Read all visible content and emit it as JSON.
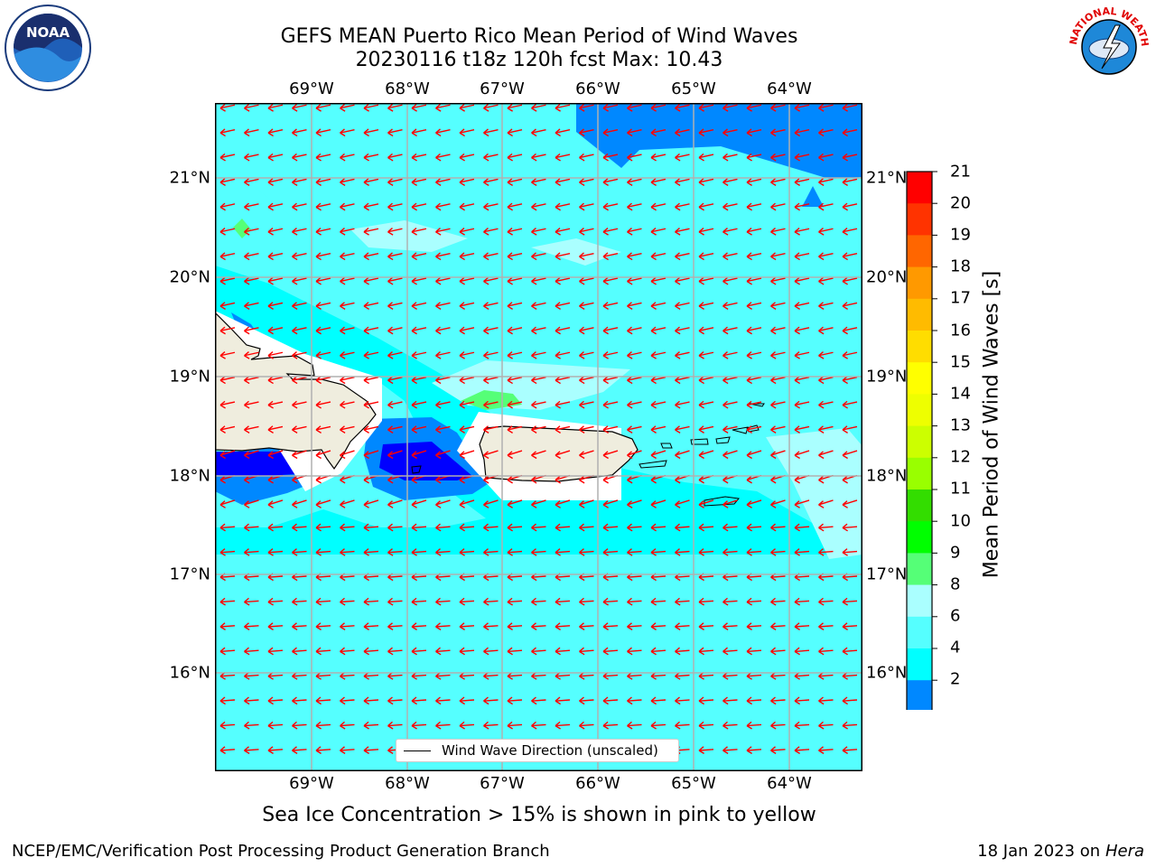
{
  "title_line1": "GEFS MEAN Puerto Rico Mean Period of Wind Waves",
  "title_line2": "20230116 t18z 120h fcst   Max: 10.43",
  "map": {
    "lon_labels": [
      "69°W",
      "68°W",
      "67°W",
      "66°W",
      "65°W",
      "64°W"
    ],
    "lat_labels": [
      "21°N",
      "20°N",
      "19°N",
      "18°N",
      "17°N",
      "16°N"
    ],
    "background_color": "#00ffff",
    "land_color": "#efedde",
    "arrow_color": "#ff0000"
  },
  "legend": {
    "label": "Wind Wave Direction (unscaled)"
  },
  "colorbar": {
    "title": "Mean Period of Wind Waves [s]",
    "ticks": [
      "21",
      "20",
      "19",
      "18",
      "17",
      "16",
      "15",
      "14",
      "13",
      "12",
      "11",
      "10",
      "9",
      "8",
      "6",
      "4",
      "2"
    ],
    "colors": [
      "#ff0000",
      "#ff3300",
      "#ff6600",
      "#ff9900",
      "#ffbb00",
      "#ffdd00",
      "#ffff00",
      "#eeff00",
      "#ccff00",
      "#99ff00",
      "#33dd00",
      "#00ff00",
      "#55ff77",
      "#aaffff",
      "#55ffff",
      "#00ffff",
      "#0088ff",
      "#0000ff"
    ]
  },
  "caption": "Sea Ice Concentration > 15% is shown in pink to yellow",
  "footer_left": "NCEP/EMC/Verification Post Processing Product Generation Branch",
  "footer_right_prefix": "18 Jan 2023 on ",
  "footer_right_host": "Hera",
  "logos": {
    "left": "NOAA",
    "right": "NATIONAL WEATHER SERVICE"
  }
}
